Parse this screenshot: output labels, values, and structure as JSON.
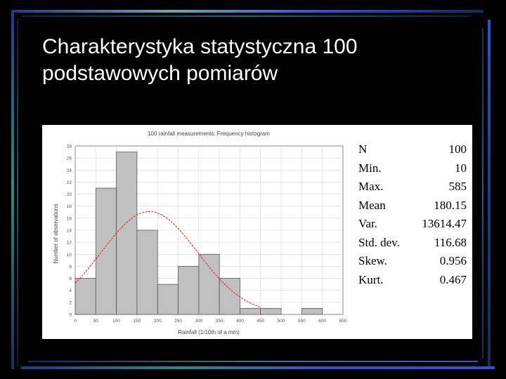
{
  "slide": {
    "title_line1": "Charakterystyka statystyczna 100",
    "title_line2": "podstawowych pomiarów"
  },
  "colors": {
    "background": "#000000",
    "accent_blue": "#2f4fd8",
    "accent_teal": "#2a8a8a",
    "bar_fill": "#c0c0c0",
    "normal_curve": "#e02020"
  },
  "chart_data": {
    "type": "bar",
    "title": "100 rainfall measurements: Frequency histogram",
    "xlabel": "Rainfall (1/10th of a mm)",
    "ylabel": "Number of observations",
    "bin_edges": [
      0,
      50,
      100,
      150,
      200,
      250,
      300,
      350,
      400,
      450,
      500,
      550,
      600
    ],
    "values": [
      6,
      21,
      27,
      14,
      5,
      8,
      10,
      6,
      1,
      1,
      0,
      1
    ],
    "xlim": [
      0,
      650
    ],
    "ylim": [
      0,
      28
    ],
    "xticks": [
      "0",
      "50",
      "100",
      "150",
      "200",
      "250",
      "300",
      "350",
      "400",
      "450",
      "500",
      "550",
      "600",
      "650"
    ],
    "yticks": [
      "0",
      "2",
      "4",
      "6",
      "8",
      "10",
      "12",
      "14",
      "16",
      "18",
      "20",
      "22",
      "24",
      "26",
      "28"
    ],
    "fitted_curve": {
      "type": "normal",
      "mean": 180.15,
      "std": 116.68,
      "n": 100,
      "bin_width": 50
    },
    "grid": true,
    "legend": "none"
  },
  "stats": [
    {
      "label": "N",
      "value": "100"
    },
    {
      "label": "Min.",
      "value": "10"
    },
    {
      "label": "Max.",
      "value": "585"
    },
    {
      "label": "Mean",
      "value": "180.15"
    },
    {
      "label": "Var.",
      "value": "13614.47"
    },
    {
      "label": "Std. dev.",
      "value": "116.68"
    },
    {
      "label": "Skew.",
      "value": "0.956"
    },
    {
      "label": "Kurt.",
      "value": "0.467"
    }
  ]
}
